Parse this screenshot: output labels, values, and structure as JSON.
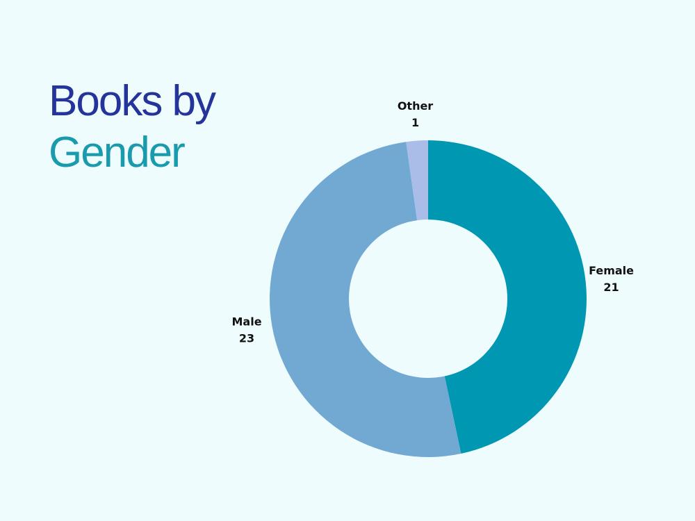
{
  "chart_data": {
    "type": "donut",
    "title": [
      "Books by",
      "Gender"
    ],
    "title_colors": [
      "#24349a",
      "#1a9aad"
    ],
    "categories": [
      "Female",
      "Male",
      "Other"
    ],
    "values": [
      21,
      23,
      1
    ],
    "colors": [
      "#0097b2",
      "#71a9d2",
      "#a9bde8"
    ]
  }
}
